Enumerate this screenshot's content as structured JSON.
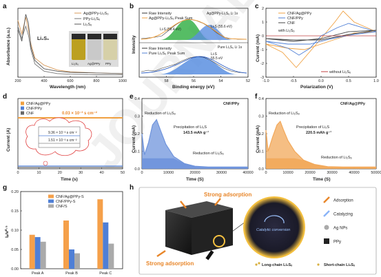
{
  "panels": {
    "a": {
      "letter": "a",
      "xlabel": "Wavelength (nm)",
      "ylabel": "Absorbance (a.u.)",
      "annotation": "Li₂S₆",
      "inset_labels": [
        "Li₂S₆",
        "Ag@PPy",
        "PPy"
      ]
    },
    "b": {
      "letter": "b",
      "xlabel": "Binding energy (eV)",
      "ylabel": "Intensity",
      "corner_top": "Ag@PPy-Li₂S₆ Li 1s",
      "corner_bottom": "Pure Li₂S₆ Li 1s",
      "peak1": "Li-S (56.4 eV)",
      "peak2": "Li-S (55.6 eV)",
      "peak3": "Li-S",
      "peak3b": "55.5 eV"
    },
    "c": {
      "letter": "c",
      "xlabel": "Polarization (V)",
      "ylabel": "Current (mA)",
      "note_with": "with Li₂S₆",
      "note_without": "without Li₂S₆"
    },
    "d": {
      "letter": "d",
      "xlabel": "Time (s)",
      "ylabel": "Current (A)",
      "note": "0.03 × 10⁻³ s cm⁻²",
      "inset_text1": "9.36 × 10⁻³ s cm⁻²",
      "inset_text2": "1.51 × 10⁻³ s cm⁻²"
    },
    "e": {
      "letter": "e",
      "xlabel": "Time (S)",
      "ylabel": "Current (mA)",
      "tag": "CNF/PPy",
      "t1": "Reduction of Li₂S₈",
      "t2": "Precipitation of Li₂S",
      "t3": "143.5 mAh g⁻¹",
      "t4": "Reduction of Li₂S₆"
    },
    "f": {
      "letter": "f",
      "xlabel": "Time (S)",
      "ylabel": "Current (mA)",
      "tag": "CNF/Ag@PPy",
      "t1": "Reduction of Li₂S₈",
      "t2": "Precipitation of Li₂S",
      "t3": "220.5 mAh g⁻¹",
      "t4": "Reduction of Li₂S₆"
    },
    "g": {
      "letter": "g",
      "ylabel": "Iₚ/v⁰·⁵"
    },
    "h": {
      "letter": "h",
      "strong_top": "Strong adsorption",
      "strong_bottom": "Strong adsorption",
      "catalytic": "Catalytic conversion",
      "legend": [
        "Adsorption",
        "Catalyzing",
        "Ag NPs",
        "PPy"
      ],
      "long_chain": "Long-chain Li₂Sₓ",
      "short_chain": "Short-chain Li₂Sₓ"
    }
  },
  "watermark": "JOURNAL",
  "colors": {
    "ag": "#f0a040",
    "ppy": "#4f7fd6",
    "cnf": "#999999"
  },
  "chart_data": [
    {
      "panel": "a",
      "type": "line",
      "xlim": [
        200,
        1000
      ],
      "series": [
        {
          "name": "Ag@PPy-Li₂S₆",
          "x": [
            200,
            230,
            260,
            280,
            300,
            330,
            400,
            500,
            600,
            800,
            1000
          ],
          "y": [
            0.95,
            0.72,
            1.0,
            0.8,
            0.55,
            0.32,
            0.2,
            0.12,
            0.09,
            0.07,
            0.06
          ]
        },
        {
          "name": "PPy-Li₂S₆",
          "x": [
            200,
            230,
            260,
            280,
            300,
            330,
            400,
            500,
            600,
            800,
            1000
          ],
          "y": [
            0.85,
            0.65,
            0.85,
            0.7,
            0.45,
            0.22,
            0.1,
            0.06,
            0.05,
            0.04,
            0.04
          ]
        },
        {
          "name": "Li₂S₆",
          "x": [
            200,
            230,
            260,
            280,
            300,
            330,
            400,
            500,
            600,
            800,
            1000
          ],
          "y": [
            0.8,
            0.6,
            1.05,
            0.9,
            0.5,
            0.28,
            0.14,
            0.1,
            0.08,
            0.07,
            0.06
          ]
        }
      ],
      "xticks": [
        200,
        400,
        600,
        800,
        1000
      ]
    },
    {
      "panel": "b",
      "type": "line",
      "xlim": [
        60,
        52
      ],
      "xticks": [
        58,
        56,
        54,
        52
      ],
      "series": [
        {
          "name": "Raw Intensity"
        },
        {
          "name": "Ag@PPy-Li₂S₆ Peak Sum"
        },
        {
          "name": "Pure Li₂S₆ Peak Sum"
        }
      ]
    },
    {
      "panel": "c",
      "type": "line",
      "xlim": [
        -1.0,
        1.0
      ],
      "ylim": [
        -3,
        2
      ],
      "xticks": [
        -1.0,
        -0.5,
        0.0,
        0.5,
        1.0
      ],
      "yticks": [
        -3,
        -2,
        -1,
        0,
        1,
        2
      ],
      "series": [
        {
          "name": "CNF/Ag@PPy",
          "x": [
            -1.0,
            -0.7,
            -0.45,
            -0.3,
            0,
            0.25,
            0.4,
            0.6,
            1.0,
            0.6,
            0.3,
            0,
            -0.3,
            -0.6,
            -1.0
          ],
          "y": [
            -0.6,
            -1.2,
            -2.3,
            -1.6,
            -0.2,
            1.0,
            1.8,
            1.0,
            0.3,
            0.2,
            -0.2,
            -0.6,
            -1.0,
            -0.9,
            -0.6
          ]
        },
        {
          "name": "CNF/PPy",
          "x": [
            -1.0,
            -0.6,
            -0.4,
            -0.2,
            0,
            0.3,
            0.5,
            1.0,
            0.6,
            0.2,
            -0.2,
            -0.6,
            -1.0
          ],
          "y": [
            -0.4,
            -0.9,
            -1.4,
            -0.9,
            0,
            0.6,
            0.9,
            0.3,
            0.1,
            -0.2,
            -0.6,
            -0.6,
            -0.4
          ]
        },
        {
          "name": "CNF",
          "x": [
            -1.0,
            -0.5,
            0,
            0.5,
            1.0,
            0.5,
            0,
            -0.5,
            -1.0
          ],
          "y": [
            -0.2,
            -0.4,
            -0.2,
            0.3,
            0.4,
            0.1,
            -0.3,
            -0.3,
            -0.2
          ]
        },
        {
          "name": "without Li₂S₆",
          "x": [
            -1.0,
            1.0
          ],
          "y": [
            0,
            0
          ]
        }
      ]
    },
    {
      "panel": "d",
      "type": "line",
      "xlim": [
        0,
        50
      ],
      "xticks": [
        0,
        10,
        20,
        30,
        40,
        50
      ],
      "series": [
        {
          "name": "CNF/Ag@PPy",
          "x": [
            0,
            50
          ],
          "y": [
            0.03,
            0.03
          ]
        },
        {
          "name": "CNF/PPy",
          "x": [
            0,
            50
          ],
          "y": [
            0.0,
            0.0
          ]
        },
        {
          "name": "CNF",
          "x": [
            0,
            50
          ],
          "y": [
            0.0,
            0.0
          ]
        }
      ]
    },
    {
      "panel": "e",
      "type": "area",
      "xlim": [
        0,
        40000
      ],
      "ylim": [
        0,
        0.4
      ],
      "xticks": [
        0,
        10000,
        20000,
        30000,
        40000
      ],
      "yticks": [
        0.0,
        0.1,
        0.2,
        0.3,
        0.4
      ],
      "series": [
        {
          "name": "CNF/PPy",
          "x": [
            0,
            1000,
            2500,
            4000,
            5500,
            7000,
            9000,
            12000,
            16000,
            20000,
            25000,
            30000,
            40000
          ],
          "y": [
            0.2,
            0.08,
            0.15,
            0.25,
            0.28,
            0.22,
            0.14,
            0.07,
            0.03,
            0.015,
            0.01,
            0.01,
            0.01
          ]
        }
      ]
    },
    {
      "panel": "f",
      "type": "area",
      "xlim": [
        0,
        50000
      ],
      "ylim": [
        0,
        0.4
      ],
      "xticks": [
        0,
        10000,
        20000,
        30000,
        40000,
        50000
      ],
      "yticks": [
        0.0,
        0.1,
        0.2,
        0.3,
        0.4
      ],
      "series": [
        {
          "name": "CNF/Ag@PPy",
          "x": [
            0,
            1000,
            3000,
            5000,
            6500,
            8000,
            10000,
            13000,
            17000,
            22000,
            28000,
            35000,
            50000
          ],
          "y": [
            0.22,
            0.1,
            0.18,
            0.25,
            0.27,
            0.22,
            0.16,
            0.1,
            0.05,
            0.025,
            0.012,
            0.01,
            0.01
          ]
        }
      ]
    },
    {
      "panel": "g",
      "type": "bar",
      "categories": [
        "Peak A",
        "Peak B",
        "Peak C"
      ],
      "ylim": [
        0,
        0.2
      ],
      "yticks": [
        0.0,
        0.05,
        0.1,
        0.15,
        0.2
      ],
      "series": [
        {
          "name": "CNF/Ag@PPy-S",
          "values": [
            0.088,
            0.125,
            0.18
          ]
        },
        {
          "name": "CNF/PPy-S",
          "values": [
            0.082,
            0.05,
            0.12
          ]
        },
        {
          "name": "CNF/S",
          "values": [
            0.07,
            0.04,
            0.065
          ]
        }
      ]
    }
  ]
}
